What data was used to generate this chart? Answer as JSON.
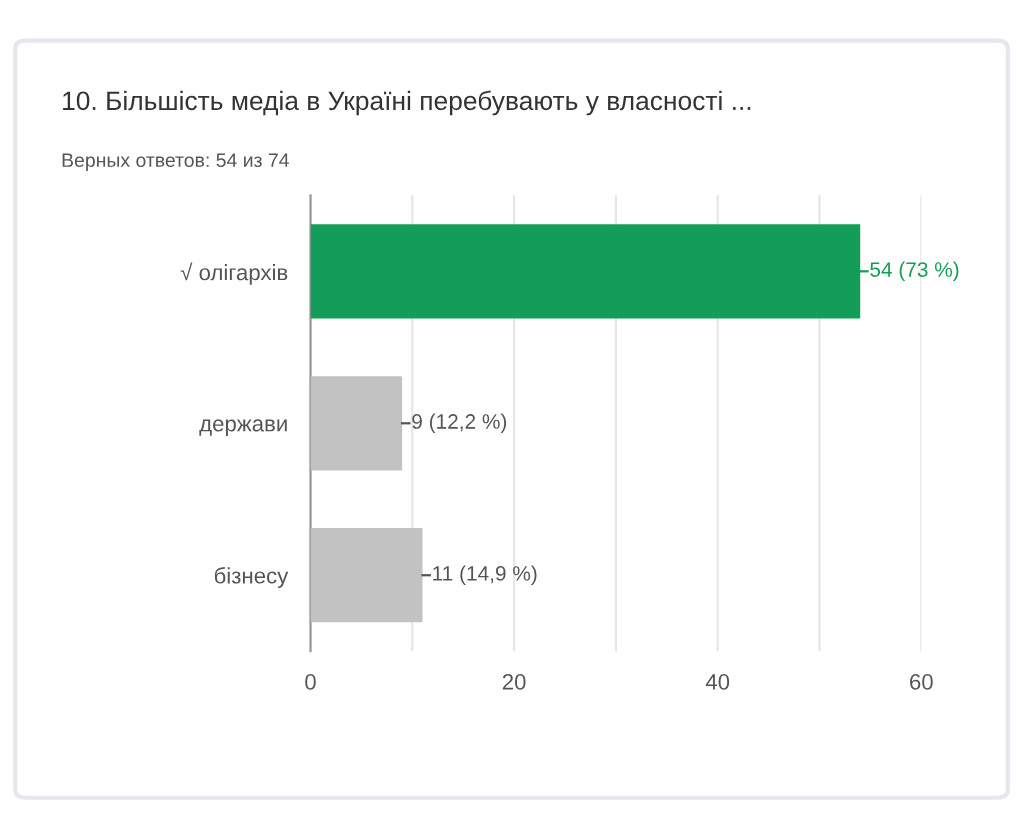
{
  "chart_data": {
    "type": "bar",
    "orientation": "horizontal",
    "title": "10. Більшість медіа в Україні перебувають у власності ...",
    "subtitle": "Верных ответов: 54 из 74",
    "categories": [
      "√ олігархів",
      "держави",
      "бізнесу"
    ],
    "values": [
      54,
      9,
      11
    ],
    "colors": [
      "#139d59",
      "#c2c2c2",
      "#c2c2c2"
    ],
    "value_labels": [
      "54 (73 %)",
      "9 (12,2 %)",
      "11 (14,9 %)"
    ],
    "xlim": [
      0,
      60
    ],
    "xticks": [
      0,
      {
        "value": 10,
        "label": null
      },
      20,
      {
        "value": 30,
        "label": null
      },
      40,
      {
        "value": 50,
        "label": null
      },
      60
    ],
    "grid": "x"
  }
}
